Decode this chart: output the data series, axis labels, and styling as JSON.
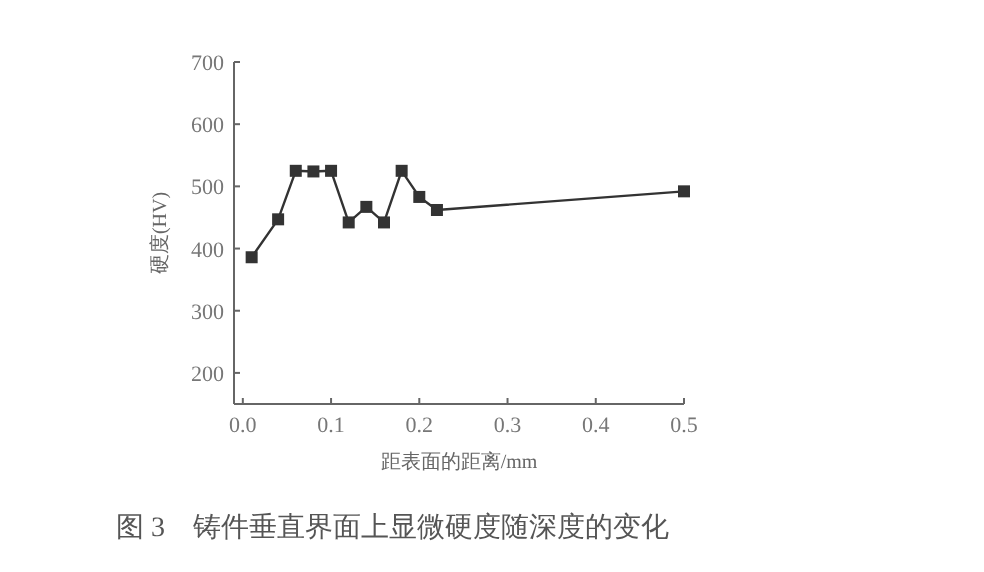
{
  "chart_data": {
    "type": "line",
    "title": "图 3　铸件垂直界面上显微硬度随深度的变化",
    "xlabel": "距表面的距离/mm",
    "ylabel": "硬度(HV)",
    "x": [
      0.01,
      0.04,
      0.06,
      0.08,
      0.1,
      0.12,
      0.14,
      0.16,
      0.18,
      0.2,
      0.22,
      0.5
    ],
    "series": [
      {
        "color": "#333333",
        "values": [
          386,
          447,
          525,
          524,
          525,
          442,
          467,
          442,
          525,
          483,
          462,
          492
        ]
      }
    ],
    "xlim": [
      -0.01,
      0.5
    ],
    "xticks": [
      {
        "value": 0,
        "label": "0.0"
      },
      0.1,
      0.2,
      0.3,
      0.4,
      0.5
    ],
    "ylim": [
      150,
      700
    ],
    "yticks": [
      200,
      300,
      400,
      500,
      600,
      700
    ],
    "marker": "square",
    "line_style": "solid",
    "grid": false
  }
}
